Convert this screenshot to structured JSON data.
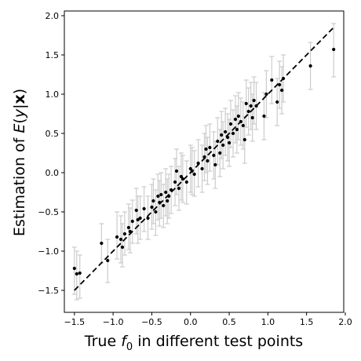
{
  "chart_data": {
    "type": "scatter",
    "xlabel": "True f₀ in different test points",
    "ylabel": "Estimation of E(y|x)",
    "xlim": [
      -1.63,
      1.98
    ],
    "ylim": [
      -1.78,
      2.06
    ],
    "xticks": [
      "−1.5",
      "−1.0",
      "−0.5",
      "0.0",
      "0.5",
      "1.0",
      "1.5",
      "2.0"
    ],
    "xtick_values": [
      -1.5,
      -1.0,
      -0.5,
      0.0,
      0.5,
      1.0,
      1.5,
      2.0
    ],
    "yticks": [
      "−1.5",
      "−1.0",
      "−0.5",
      "0.0",
      "0.5",
      "1.0",
      "1.5",
      "2.0"
    ],
    "ytick_values": [
      -1.5,
      -1.0,
      -0.5,
      0.0,
      0.5,
      1.0,
      1.5,
      2.0
    ],
    "grid": false,
    "reference_line": {
      "x": [
        -1.5,
        1.85
      ],
      "y": [
        -1.5,
        1.85
      ],
      "style": "dashed",
      "color": "#000000"
    },
    "colors": {
      "points": "#000000",
      "errorbars": "#cccccc"
    },
    "points": [
      {
        "x": -1.5,
        "y": -1.22,
        "lo": -1.55,
        "hi": -0.95
      },
      {
        "x": -1.47,
        "y": -1.29,
        "lo": -1.62,
        "hi": -1.0
      },
      {
        "x": -1.43,
        "y": -1.28,
        "lo": -1.6,
        "hi": -1.05
      },
      {
        "x": -1.15,
        "y": -0.9,
        "lo": -1.15,
        "hi": -0.65
      },
      {
        "x": -1.07,
        "y": -1.12,
        "lo": -1.4,
        "hi": -0.85
      },
      {
        "x": -0.95,
        "y": -0.82,
        "lo": -1.1,
        "hi": -0.5
      },
      {
        "x": -0.9,
        "y": -0.85,
        "lo": -1.15,
        "hi": -0.55
      },
      {
        "x": -0.88,
        "y": -0.95,
        "lo": -1.2,
        "hi": -0.65
      },
      {
        "x": -0.85,
        "y": -0.78,
        "lo": -1.05,
        "hi": -0.5
      },
      {
        "x": -0.8,
        "y": -0.7,
        "lo": -0.98,
        "hi": -0.4
      },
      {
        "x": -0.78,
        "y": -0.75,
        "lo": -1.02,
        "hi": -0.45
      },
      {
        "x": -0.75,
        "y": -0.62,
        "lo": -0.9,
        "hi": -0.35
      },
      {
        "x": -0.7,
        "y": -0.48,
        "lo": -0.78,
        "hi": -0.2
      },
      {
        "x": -0.68,
        "y": -0.6,
        "lo": -0.9,
        "hi": -0.3
      },
      {
        "x": -0.65,
        "y": -0.58,
        "lo": -0.85,
        "hi": -0.3
      },
      {
        "x": -0.6,
        "y": -0.46,
        "lo": -0.75,
        "hi": -0.18
      },
      {
        "x": -0.55,
        "y": -0.58,
        "lo": -0.85,
        "hi": -0.3
      },
      {
        "x": -0.5,
        "y": -0.44,
        "lo": -0.72,
        "hi": -0.15
      },
      {
        "x": -0.48,
        "y": -0.36,
        "lo": -0.65,
        "hi": -0.08
      },
      {
        "x": -0.45,
        "y": -0.5,
        "lo": -0.8,
        "hi": -0.22
      },
      {
        "x": -0.42,
        "y": -0.3,
        "lo": -0.6,
        "hi": -0.02
      },
      {
        "x": -0.4,
        "y": -0.38,
        "lo": -0.68,
        "hi": -0.1
      },
      {
        "x": -0.38,
        "y": -0.28,
        "lo": -0.58,
        "hi": 0.0
      },
      {
        "x": -0.35,
        "y": -0.42,
        "lo": -0.7,
        "hi": -0.15
      },
      {
        "x": -0.32,
        "y": -0.25,
        "lo": -0.55,
        "hi": 0.05
      },
      {
        "x": -0.3,
        "y": -0.36,
        "lo": -0.65,
        "hi": -0.08
      },
      {
        "x": -0.28,
        "y": -0.3,
        "lo": -0.58,
        "hi": -0.02
      },
      {
        "x": -0.25,
        "y": -0.22,
        "lo": -0.52,
        "hi": 0.08
      },
      {
        "x": -0.2,
        "y": -0.12,
        "lo": -0.42,
        "hi": 0.18
      },
      {
        "x": -0.18,
        "y": 0.02,
        "lo": -0.28,
        "hi": 0.3
      },
      {
        "x": -0.15,
        "y": -0.2,
        "lo": -0.48,
        "hi": 0.08
      },
      {
        "x": -0.12,
        "y": -0.05,
        "lo": -0.35,
        "hi": 0.25
      },
      {
        "x": -0.1,
        "y": -0.08,
        "lo": -0.38,
        "hi": 0.22
      },
      {
        "x": -0.05,
        "y": -0.12,
        "lo": -0.4,
        "hi": 0.15
      },
      {
        "x": 0.0,
        "y": 0.05,
        "lo": -0.25,
        "hi": 0.35
      },
      {
        "x": 0.02,
        "y": 0.02,
        "lo": -0.28,
        "hi": 0.32
      },
      {
        "x": 0.05,
        "y": -0.02,
        "lo": -0.3,
        "hi": 0.28
      },
      {
        "x": 0.1,
        "y": 0.12,
        "lo": -0.18,
        "hi": 0.42
      },
      {
        "x": 0.15,
        "y": 0.05,
        "lo": -0.25,
        "hi": 0.35
      },
      {
        "x": 0.18,
        "y": 0.2,
        "lo": -0.1,
        "hi": 0.5
      },
      {
        "x": 0.2,
        "y": 0.3,
        "lo": 0.0,
        "hi": 0.6
      },
      {
        "x": 0.22,
        "y": 0.15,
        "lo": -0.15,
        "hi": 0.45
      },
      {
        "x": 0.25,
        "y": 0.32,
        "lo": 0.02,
        "hi": 0.62
      },
      {
        "x": 0.3,
        "y": 0.22,
        "lo": -0.08,
        "hi": 0.52
      },
      {
        "x": 0.32,
        "y": 0.1,
        "lo": -0.2,
        "hi": 0.4
      },
      {
        "x": 0.35,
        "y": 0.4,
        "lo": 0.1,
        "hi": 0.7
      },
      {
        "x": 0.38,
        "y": 0.25,
        "lo": -0.05,
        "hi": 0.55
      },
      {
        "x": 0.4,
        "y": 0.48,
        "lo": 0.18,
        "hi": 0.78
      },
      {
        "x": 0.42,
        "y": 0.35,
        "lo": 0.05,
        "hi": 0.65
      },
      {
        "x": 0.45,
        "y": 0.52,
        "lo": 0.22,
        "hi": 0.82
      },
      {
        "x": 0.48,
        "y": 0.45,
        "lo": 0.15,
        "hi": 0.75
      },
      {
        "x": 0.5,
        "y": 0.38,
        "lo": 0.08,
        "hi": 0.68
      },
      {
        "x": 0.52,
        "y": 0.62,
        "lo": 0.32,
        "hi": 0.92
      },
      {
        "x": 0.55,
        "y": 0.5,
        "lo": 0.2,
        "hi": 0.8
      },
      {
        "x": 0.58,
        "y": 0.68,
        "lo": 0.38,
        "hi": 0.98
      },
      {
        "x": 0.6,
        "y": 0.55,
        "lo": 0.25,
        "hi": 0.85
      },
      {
        "x": 0.62,
        "y": 0.72,
        "lo": 0.42,
        "hi": 1.02
      },
      {
        "x": 0.65,
        "y": 0.65,
        "lo": 0.35,
        "hi": 0.95
      },
      {
        "x": 0.68,
        "y": 0.6,
        "lo": 0.3,
        "hi": 0.9
      },
      {
        "x": 0.7,
        "y": 0.42,
        "lo": 0.12,
        "hi": 0.72
      },
      {
        "x": 0.72,
        "y": 0.88,
        "lo": 0.58,
        "hi": 1.18
      },
      {
        "x": 0.75,
        "y": 0.78,
        "lo": 0.48,
        "hi": 1.08
      },
      {
        "x": 0.78,
        "y": 0.85,
        "lo": 0.55,
        "hi": 1.15
      },
      {
        "x": 0.8,
        "y": 0.7,
        "lo": 0.4,
        "hi": 1.0
      },
      {
        "x": 0.82,
        "y": 0.92,
        "lo": 0.62,
        "hi": 1.22
      },
      {
        "x": 0.85,
        "y": 0.85,
        "lo": 0.55,
        "hi": 1.15
      },
      {
        "x": 0.95,
        "y": 0.72,
        "lo": 0.42,
        "hi": 1.02
      },
      {
        "x": 0.98,
        "y": 1.0,
        "lo": 0.7,
        "hi": 1.3
      },
      {
        "x": 1.05,
        "y": 1.18,
        "lo": 0.88,
        "hi": 1.48
      },
      {
        "x": 1.12,
        "y": 0.9,
        "lo": 0.6,
        "hi": 1.2
      },
      {
        "x": 1.15,
        "y": 1.12,
        "lo": 0.82,
        "hi": 1.42
      },
      {
        "x": 1.18,
        "y": 1.05,
        "lo": 0.75,
        "hi": 1.35
      },
      {
        "x": 1.2,
        "y": 1.2,
        "lo": 0.9,
        "hi": 1.5
      },
      {
        "x": 1.55,
        "y": 1.36,
        "lo": 1.06,
        "hi": 1.66
      },
      {
        "x": 1.85,
        "y": 1.57,
        "lo": 1.22,
        "hi": 1.9
      }
    ]
  }
}
